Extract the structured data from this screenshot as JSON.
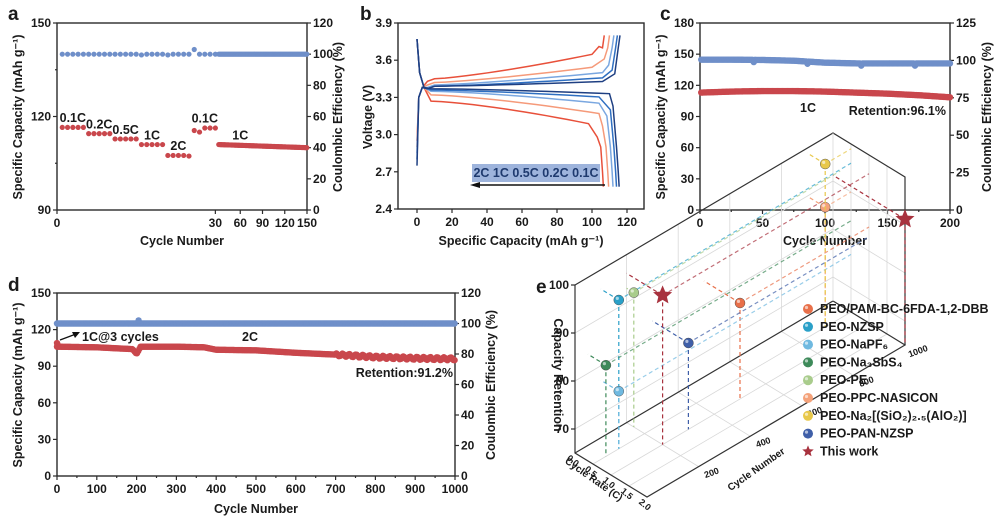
{
  "figure": {
    "panels": [
      "a",
      "b",
      "c",
      "d",
      "e"
    ]
  },
  "chart_data": [
    {
      "id": "a",
      "type": "scatter",
      "panel_label": "a",
      "xlabel": "Cycle Number",
      "ylabel": "Specific Capacity (mAh g⁻¹)",
      "y2label": "Coulombic Efficiency (%)",
      "ylim": [
        90,
        150
      ],
      "y2lim": [
        0,
        120
      ],
      "yticks": [
        90,
        120,
        150
      ],
      "y2ticks": [
        0,
        20,
        40,
        60,
        80,
        100,
        120
      ],
      "xtick_labels": [
        "0",
        "30",
        "60",
        "90",
        "120",
        "150"
      ],
      "note": "x-axis is broken: cycles 0-30 expanded, 30-150 compressed",
      "series": [
        {
          "name": "Specific Capacity",
          "axis": "left",
          "color": "#c9474c",
          "segments": [
            {
              "rate": "0.1C",
              "cycles": [
                1,
                2,
                3,
                4,
                5
              ],
              "values": [
                116.5,
                116.5,
                116.5,
                116.5,
                116.5
              ]
            },
            {
              "rate": "0.2C",
              "cycles": [
                6,
                7,
                8,
                9,
                10
              ],
              "values": [
                114.5,
                114.5,
                114.5,
                114.5,
                114.5
              ]
            },
            {
              "rate": "0.5C",
              "cycles": [
                11,
                12,
                13,
                14,
                15
              ],
              "values": [
                112.8,
                112.8,
                112.8,
                112.8,
                112.8
              ]
            },
            {
              "rate": "1C",
              "cycles": [
                16,
                17,
                18,
                19,
                20
              ],
              "values": [
                111,
                111,
                111,
                111,
                111
              ]
            },
            {
              "rate": "2C",
              "cycles": [
                21,
                22,
                23,
                24,
                25
              ],
              "values": [
                107.5,
                107.5,
                107.5,
                107.5,
                107.3
              ]
            },
            {
              "rate": "0.1C",
              "cycles": [
                26,
                27,
                28,
                29,
                30
              ],
              "values": [
                115.5,
                115,
                116.3,
                116.3,
                116.3
              ]
            },
            {
              "rate": "1C",
              "cycles_range": [
                31,
                150
              ],
              "start": 111,
              "end": 110
            }
          ]
        },
        {
          "name": "Coulombic Efficiency",
          "axis": "right",
          "color": "#6f8fc9",
          "values_summary": "approx 100% throughout; spike ~103% at cycle 26"
        }
      ],
      "annotations": [
        "0.1C",
        "0.2C",
        "0.5C",
        "1C",
        "2C",
        "0.1C",
        "1C"
      ]
    },
    {
      "id": "b",
      "type": "line",
      "panel_label": "b",
      "xlabel": "Specific Capacity (mAh g⁻¹)",
      "ylabel": "Voltage (V)",
      "xlim": [
        -10,
        130
      ],
      "ylim": [
        2.4,
        3.9
      ],
      "xticks": [
        0,
        20,
        40,
        60,
        80,
        100,
        120
      ],
      "yticks": [
        2.4,
        2.7,
        3.0,
        3.3,
        3.6,
        3.9
      ],
      "legend_box": "2C 1C 0.5C 0.2C 0.1C",
      "series": [
        {
          "name": "2C",
          "color": "#e8503a",
          "capacity": 107,
          "charge_plateau": [
            3.45,
            3.65
          ],
          "discharge_plateau": [
            3.27,
            3.08
          ]
        },
        {
          "name": "1C",
          "color": "#f59a7a",
          "capacity": 110,
          "charge_plateau": [
            3.42,
            3.55
          ],
          "discharge_plateau": [
            3.32,
            3.17
          ]
        },
        {
          "name": "0.5C",
          "color": "#7aa7e0",
          "capacity": 112.5,
          "charge_plateau": [
            3.4,
            3.5
          ],
          "discharge_plateau": [
            3.35,
            3.25
          ]
        },
        {
          "name": "0.2C",
          "color": "#2f6fc1",
          "capacity": 114.5,
          "charge_plateau": [
            3.39,
            3.46
          ],
          "discharge_plateau": [
            3.36,
            3.3
          ]
        },
        {
          "name": "0.1C",
          "color": "#1e3f82",
          "capacity": 116,
          "charge_plateau": [
            3.39,
            3.43
          ],
          "discharge_plateau": [
            3.37,
            3.33
          ]
        }
      ]
    },
    {
      "id": "c",
      "type": "scatter",
      "panel_label": "c",
      "xlabel": "Cycle Number",
      "ylabel": "Specific Capacity (mAh g⁻¹)",
      "y2label": "Coulombic Efficiency (%)",
      "xlim": [
        0,
        200
      ],
      "ylim": [
        0,
        180
      ],
      "y2lim": [
        0,
        125
      ],
      "xticks": [
        0,
        50,
        100,
        150,
        200
      ],
      "yticks": [
        0,
        30,
        60,
        90,
        120,
        150,
        180
      ],
      "y2ticks": [
        0,
        25,
        50,
        75,
        100,
        125
      ],
      "annotations": [
        "1C",
        "Retention:96.1%"
      ],
      "series": [
        {
          "name": "Specific Capacity",
          "axis": "left",
          "color": "#c9474c",
          "x": [
            0,
            25,
            50,
            75,
            100,
            125,
            150,
            175,
            200
          ],
          "y": [
            113,
            114,
            114.5,
            114.5,
            114,
            113,
            112,
            110.5,
            108.5
          ]
        },
        {
          "name": "Coulombic Efficiency",
          "axis": "right",
          "color": "#6f8fc9",
          "x": [
            0,
            25,
            50,
            75,
            100,
            125,
            150,
            175,
            200
          ],
          "y": [
            100.5,
            100.5,
            100.3,
            99.8,
            98.5,
            98,
            98,
            98,
            98
          ]
        }
      ]
    },
    {
      "id": "d",
      "type": "scatter",
      "panel_label": "d",
      "xlabel": "Cycle Number",
      "ylabel": "Specific Capacity (mAh g⁻¹)",
      "y2label": "Coulombic Efficiency (%)",
      "xlim": [
        0,
        1000
      ],
      "ylim": [
        0,
        150
      ],
      "y2lim": [
        0,
        120
      ],
      "xticks": [
        0,
        100,
        200,
        300,
        400,
        500,
        600,
        700,
        800,
        900,
        1000
      ],
      "yticks": [
        0,
        30,
        60,
        90,
        120,
        150
      ],
      "y2ticks": [
        0,
        20,
        40,
        60,
        80,
        100,
        120
      ],
      "annotations": [
        "1C@3 cycles",
        "2C",
        "Retention:91.2%"
      ],
      "series": [
        {
          "name": "Specific Capacity",
          "axis": "left",
          "color": "#c9474c",
          "x": [
            0,
            100,
            190,
            200,
            210,
            300,
            370,
            400,
            500,
            600,
            700,
            800,
            900,
            1000
          ],
          "y": [
            106,
            105.5,
            104,
            100,
            106,
            106,
            105.5,
            103.5,
            103,
            101,
            99.5,
            97.5,
            96.5,
            96
          ]
        },
        {
          "name": "Coulombic Efficiency",
          "axis": "right",
          "color": "#6f8fc9",
          "x": [
            0,
            1000
          ],
          "y": [
            100,
            100
          ]
        }
      ]
    },
    {
      "id": "e",
      "type": "scatter",
      "subtype": "3d-scatter",
      "panel_label": "e",
      "xlabel": "Cycle Rate (C)",
      "ylabel": "Cycle Number",
      "zlabel": "Capacity Retention",
      "xticks": [
        "0.0",
        "0.5",
        "1.0",
        "1.5",
        "2.0"
      ],
      "yticks": [
        "200",
        "400",
        "600",
        "800",
        "1000"
      ],
      "zticks": [
        "70",
        "80",
        "90",
        "100"
      ],
      "xlim": [
        0,
        2
      ],
      "ylim": [
        0,
        1000
      ],
      "zlim": [
        65,
        100
      ],
      "legend": [
        {
          "name": "PEO/PAM-BC-6FDA-1,2-DBB",
          "color": "#e8704a",
          "marker": "sphere",
          "rate": 1.0,
          "cycles": 500,
          "retention": 85
        },
        {
          "name": "PEO-NZSP",
          "color": "#2aa0c8",
          "marker": "sphere",
          "rate": 0.5,
          "cycles": 100,
          "retention": 96
        },
        {
          "name": "PEO-NaPF₆",
          "color": "#6fb9e0",
          "marker": "sphere",
          "rate": 0.5,
          "cycles": 100,
          "retention": 77
        },
        {
          "name": "PEO-Na₃SbS₄",
          "color": "#3e8a5a",
          "marker": "sphere",
          "rate": 0.5,
          "cycles": 50,
          "retention": 84
        },
        {
          "name": "PEO-PE",
          "color": "#a9cc8c",
          "marker": "sphere",
          "rate": 0.2,
          "cycles": 200,
          "retention": 93
        },
        {
          "name": "PEO-PPC-NASICON",
          "color": "#f4a27a",
          "marker": "sphere",
          "rate": 0.5,
          "cycles": 900,
          "retention": 90
        },
        {
          "name": "PEO-Na₂[(SiO₂)₂.₅(AlO₂)]",
          "color": "#e8c84a",
          "marker": "sphere",
          "rate": 0.5,
          "cycles": 900,
          "retention": 99
        },
        {
          "name": "PEO-PAN-NZSP",
          "color": "#3f5fa8",
          "marker": "sphere",
          "rate": 1.0,
          "cycles": 300,
          "retention": 83
        },
        {
          "name": "This work",
          "color": "#a8323e",
          "marker": "star",
          "points": [
            {
              "rate": 1.0,
              "cycles": 200,
              "retention": 96.1
            },
            {
              "rate": 2.0,
              "cycles": 1000,
              "retention": 91.2
            }
          ]
        }
      ]
    }
  ]
}
